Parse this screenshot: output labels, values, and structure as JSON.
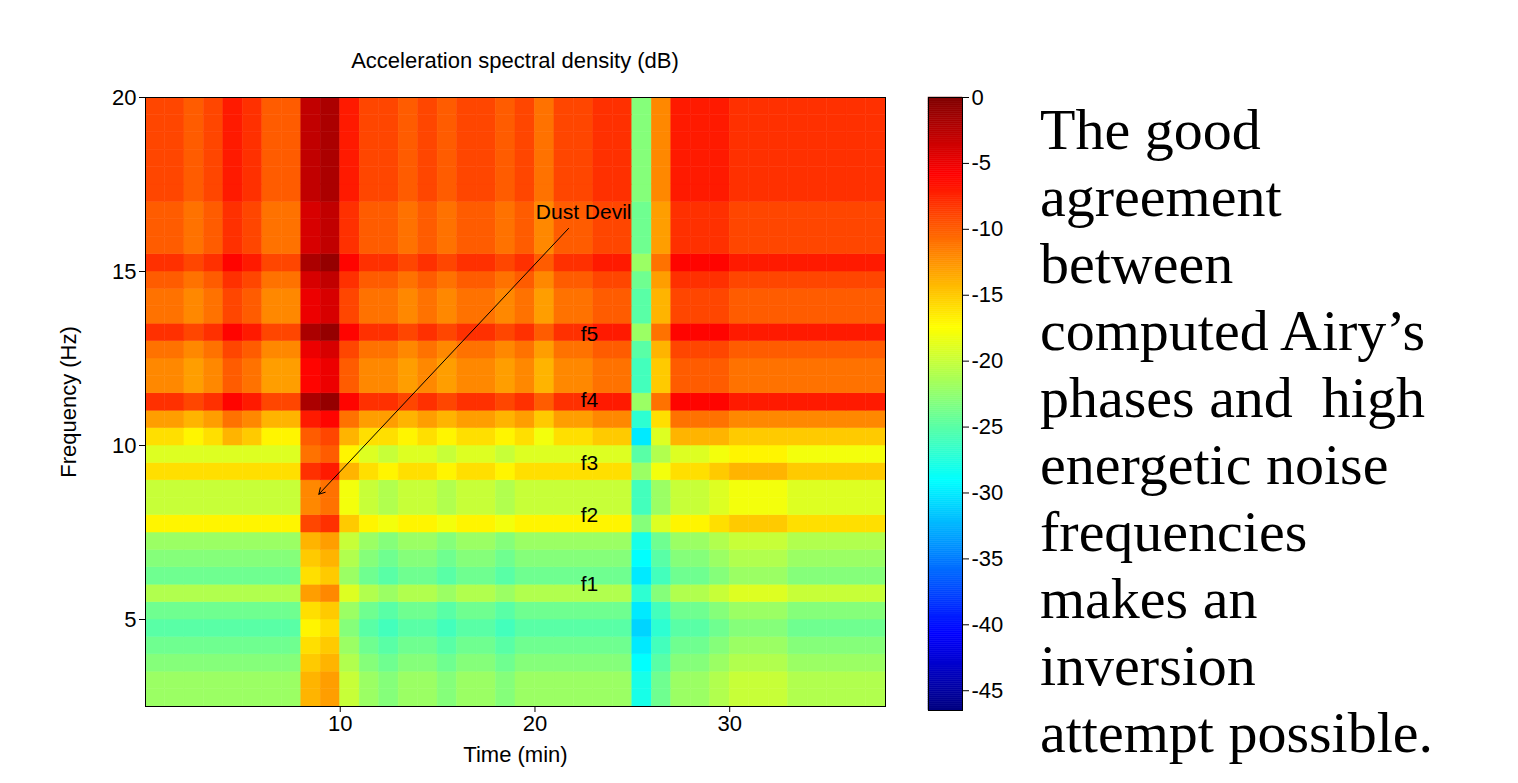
{
  "chart_data": {
    "type": "heatmap",
    "title": "Acceleration spectral density (dB)",
    "x_label": "Time (min)",
    "y_label": "Frequency (Hz)",
    "xlim": [
      0,
      38
    ],
    "ylim": [
      2.5,
      20
    ],
    "xticks": [
      10,
      20,
      30
    ],
    "yticks": [
      5,
      10,
      15,
      20
    ],
    "x_edges": [
      0,
      1,
      2,
      3,
      4,
      5,
      6,
      7,
      8,
      9,
      10,
      11,
      12,
      13,
      14,
      15,
      16,
      17,
      18,
      19,
      20,
      21,
      22,
      23,
      24,
      25,
      26,
      27,
      28,
      29,
      30,
      31,
      32,
      33,
      34,
      35,
      36,
      37,
      38
    ],
    "y_edges": [
      2.5,
      3,
      3.5,
      4,
      4.5,
      5,
      5.5,
      6,
      6.5,
      7,
      7.5,
      8,
      8.5,
      9,
      9.5,
      10,
      10.5,
      11,
      11.5,
      12,
      12.5,
      13,
      13.5,
      14,
      14.5,
      15,
      15.5,
      16,
      16.5,
      17,
      17.5,
      18,
      18.5,
      19,
      19.5,
      20
    ],
    "cells": [
      [
        -22,
        -22,
        -22,
        -22,
        -22,
        -22,
        -22,
        -22,
        -14,
        -13,
        -20,
        -22,
        -23,
        -22,
        -22,
        -23,
        -22,
        -22,
        -23,
        -22,
        -22,
        -22,
        -22,
        -22,
        -22,
        -28,
        -24,
        -22,
        -22,
        -21,
        -20,
        -20,
        -20,
        -21,
        -21,
        -21,
        -21,
        -21
      ],
      [
        -22,
        -22,
        -22,
        -22,
        -22,
        -22,
        -22,
        -22,
        -14,
        -13,
        -20,
        -22,
        -23,
        -22,
        -22,
        -23,
        -22,
        -22,
        -23,
        -22,
        -22,
        -22,
        -22,
        -22,
        -22,
        -28,
        -24,
        -22,
        -22,
        -21,
        -20,
        -20,
        -20,
        -21,
        -21,
        -21,
        -21,
        -21
      ],
      [
        -23,
        -23,
        -23,
        -23,
        -23,
        -23,
        -23,
        -23,
        -15,
        -14,
        -21,
        -23,
        -24,
        -23,
        -23,
        -24,
        -23,
        -23,
        -24,
        -23,
        -23,
        -23,
        -23,
        -23,
        -23,
        -29,
        -25,
        -23,
        -23,
        -22,
        -21,
        -21,
        -21,
        -22,
        -22,
        -22,
        -22,
        -22
      ],
      [
        -24,
        -24,
        -24,
        -24,
        -24,
        -24,
        -24,
        -24,
        -16,
        -15,
        -22,
        -24,
        -25,
        -24,
        -24,
        -25,
        -24,
        -24,
        -25,
        -24,
        -24,
        -24,
        -24,
        -24,
        -24,
        -30,
        -26,
        -24,
        -24,
        -23,
        -22,
        -22,
        -22,
        -23,
        -23,
        -23,
        -23,
        -23
      ],
      [
        -25,
        -25,
        -25,
        -25,
        -25,
        -25,
        -25,
        -25,
        -17,
        -16,
        -23,
        -25,
        -26,
        -25,
        -25,
        -26,
        -25,
        -25,
        -26,
        -25,
        -25,
        -25,
        -25,
        -25,
        -25,
        -31,
        -27,
        -25,
        -25,
        -24,
        -23,
        -23,
        -23,
        -24,
        -24,
        -24,
        -24,
        -24
      ],
      [
        -24,
        -24,
        -24,
        -24,
        -24,
        -24,
        -24,
        -24,
        -16,
        -15,
        -22,
        -24,
        -25,
        -24,
        -24,
        -25,
        -24,
        -24,
        -25,
        -24,
        -24,
        -24,
        -24,
        -24,
        -24,
        -30,
        -26,
        -24,
        -24,
        -23,
        -22,
        -22,
        -22,
        -23,
        -23,
        -23,
        -23,
        -23
      ],
      [
        -21,
        -21,
        -21,
        -21,
        -21,
        -21,
        -21,
        -21,
        -13,
        -12,
        -19,
        -21,
        -22,
        -21,
        -21,
        -22,
        -21,
        -21,
        -22,
        -21,
        -21,
        -21,
        -21,
        -21,
        -21,
        -27,
        -23,
        -21,
        -21,
        -20,
        -19,
        -19,
        -19,
        -20,
        -20,
        -20,
        -20,
        -20
      ],
      [
        -24,
        -24,
        -24,
        -24,
        -24,
        -24,
        -24,
        -24,
        -16,
        -15,
        -22,
        -24,
        -25,
        -24,
        -24,
        -25,
        -24,
        -24,
        -25,
        -24,
        -24,
        -24,
        -24,
        -24,
        -24,
        -30,
        -26,
        -24,
        -24,
        -23,
        -22,
        -22,
        -22,
        -23,
        -23,
        -23,
        -23,
        -23
      ],
      [
        -23,
        -23,
        -23,
        -23,
        -23,
        -23,
        -23,
        -23,
        -15,
        -14,
        -21,
        -23,
        -24,
        -23,
        -23,
        -24,
        -23,
        -23,
        -24,
        -23,
        -23,
        -23,
        -23,
        -23,
        -23,
        -29,
        -25,
        -23,
        -23,
        -22,
        -21,
        -21,
        -21,
        -22,
        -22,
        -22,
        -22,
        -22
      ],
      [
        -22,
        -22,
        -22,
        -22,
        -22,
        -22,
        -22,
        -22,
        -14,
        -13,
        -20,
        -22,
        -23,
        -22,
        -22,
        -23,
        -22,
        -22,
        -23,
        -22,
        -22,
        -22,
        -22,
        -22,
        -22,
        -28,
        -24,
        -22,
        -22,
        -21,
        -20,
        -20,
        -20,
        -21,
        -21,
        -21,
        -21,
        -21
      ],
      [
        -17,
        -17,
        -17,
        -17,
        -17,
        -17,
        -17,
        -17,
        -9,
        -8,
        -15,
        -17,
        -18,
        -17,
        -17,
        -18,
        -17,
        -17,
        -18,
        -17,
        -17,
        -17,
        -17,
        -17,
        -17,
        -23,
        -19,
        -17,
        -17,
        -16,
        -15,
        -15,
        -15,
        -16,
        -16,
        -16,
        -16,
        -16
      ],
      [
        -20,
        -20,
        -20,
        -20,
        -20,
        -20,
        -20,
        -20,
        -12,
        -11,
        -18,
        -20,
        -21,
        -20,
        -20,
        -21,
        -20,
        -20,
        -21,
        -20,
        -20,
        -20,
        -20,
        -20,
        -20,
        -26,
        -22,
        -20,
        -20,
        -19,
        -18,
        -18,
        -18,
        -19,
        -19,
        -19,
        -19,
        -19
      ],
      [
        -20,
        -20,
        -20,
        -20,
        -20,
        -20,
        -20,
        -20,
        -12,
        -11,
        -18,
        -20,
        -21,
        -20,
        -20,
        -21,
        -20,
        -20,
        -21,
        -20,
        -20,
        -20,
        -20,
        -20,
        -20,
        -26,
        -22,
        -20,
        -20,
        -19,
        -18,
        -18,
        -18,
        -19,
        -19,
        -19,
        -19,
        -19
      ],
      [
        -16,
        -16,
        -16,
        -16,
        -16,
        -16,
        -16,
        -16,
        -8,
        -7,
        -14,
        -16,
        -17,
        -16,
        -16,
        -17,
        -16,
        -16,
        -17,
        -16,
        -16,
        -16,
        -16,
        -16,
        -16,
        -22,
        -18,
        -16,
        -16,
        -15,
        -14,
        -14,
        -14,
        -15,
        -15,
        -15,
        -15,
        -15
      ],
      [
        -19,
        -19,
        -19,
        -19,
        -19,
        -19,
        -19,
        -19,
        -11,
        -10,
        -17,
        -19,
        -20,
        -19,
        -19,
        -20,
        -19,
        -19,
        -20,
        -19,
        -19,
        -19,
        -19,
        -19,
        -19,
        -25,
        -21,
        -19,
        -19,
        -18,
        -17,
        -17,
        -17,
        -18,
        -18,
        -18,
        -18,
        -18
      ],
      [
        -16,
        -16,
        -17,
        -16,
        -14,
        -15,
        -17,
        -17,
        -10,
        -9,
        -14,
        -16,
        -16,
        -17,
        -16,
        -17,
        -16,
        -16,
        -17,
        -16,
        -18,
        -16,
        -16,
        -15,
        -15,
        -30,
        -19,
        -14,
        -14,
        -14,
        -15,
        -15,
        -15,
        -15,
        -15,
        -15,
        -15,
        -15
      ],
      [
        -13,
        -13,
        -14,
        -13,
        -11,
        -12,
        -14,
        -14,
        -7,
        -6,
        -11,
        -13,
        -13,
        -14,
        -13,
        -14,
        -13,
        -13,
        -14,
        -13,
        -15,
        -13,
        -13,
        -12,
        -12,
        -27,
        -16,
        -11,
        -11,
        -11,
        -12,
        -12,
        -12,
        -12,
        -12,
        -12,
        -12,
        -12
      ],
      [
        -8,
        -8,
        -9,
        -8,
        -6,
        -7,
        -9,
        -9,
        -2,
        -1,
        -6,
        -8,
        -8,
        -9,
        -8,
        -9,
        -8,
        -8,
        -9,
        -8,
        -10,
        -8,
        -8,
        -7,
        -7,
        -22,
        -11,
        -6,
        -6,
        -6,
        -7,
        -7,
        -7,
        -7,
        -7,
        -7,
        -7,
        -7
      ],
      [
        -12,
        -12,
        -13,
        -12,
        -10,
        -11,
        -13,
        -13,
        -6,
        -5,
        -10,
        -12,
        -12,
        -13,
        -12,
        -13,
        -12,
        -12,
        -13,
        -12,
        -14,
        -12,
        -12,
        -11,
        -11,
        -26,
        -15,
        -10,
        -10,
        -10,
        -11,
        -11,
        -11,
        -11,
        -11,
        -11,
        -11,
        -11
      ],
      [
        -12,
        -12,
        -13,
        -12,
        -10,
        -11,
        -13,
        -13,
        -6,
        -5,
        -10,
        -12,
        -12,
        -13,
        -12,
        -13,
        -12,
        -12,
        -13,
        -12,
        -14,
        -12,
        -12,
        -11,
        -11,
        -26,
        -15,
        -10,
        -10,
        -10,
        -11,
        -11,
        -11,
        -11,
        -11,
        -11,
        -11,
        -11
      ],
      [
        -11,
        -11,
        -12,
        -11,
        -9,
        -10,
        -12,
        -12,
        -5,
        -4,
        -9,
        -11,
        -11,
        -12,
        -11,
        -12,
        -11,
        -11,
        -12,
        -11,
        -13,
        -11,
        -11,
        -10,
        -10,
        -25,
        -14,
        -9,
        -9,
        -9,
        -10,
        -10,
        -10,
        -10,
        -10,
        -10,
        -10,
        -10
      ],
      [
        -8,
        -8,
        -9,
        -8,
        -6,
        -7,
        -9,
        -9,
        -2,
        -1,
        -6,
        -8,
        -8,
        -9,
        -8,
        -9,
        -8,
        -8,
        -9,
        -8,
        -10,
        -8,
        -8,
        -7,
        -7,
        -22,
        -11,
        -6,
        -6,
        -6,
        -7,
        -7,
        -7,
        -7,
        -7,
        -7,
        -7,
        -7
      ],
      [
        -11,
        -11,
        -12,
        -11,
        -9,
        -10,
        -12,
        -12,
        -5,
        -4,
        -9,
        -11,
        -11,
        -12,
        -11,
        -12,
        -11,
        -11,
        -12,
        -11,
        -13,
        -11,
        -11,
        -10,
        -10,
        -25,
        -14,
        -9,
        -9,
        -9,
        -10,
        -10,
        -10,
        -10,
        -10,
        -10,
        -10,
        -10
      ],
      [
        -11,
        -11,
        -12,
        -11,
        -9,
        -10,
        -12,
        -12,
        -5,
        -4,
        -9,
        -11,
        -11,
        -12,
        -11,
        -12,
        -11,
        -11,
        -12,
        -11,
        -13,
        -11,
        -11,
        -10,
        -10,
        -25,
        -14,
        -9,
        -9,
        -9,
        -10,
        -10,
        -10,
        -10,
        -10,
        -10,
        -10,
        -10
      ],
      [
        -10,
        -10,
        -11,
        -10,
        -8,
        -9,
        -11,
        -11,
        -4,
        -3,
        -8,
        -10,
        -10,
        -11,
        -10,
        -11,
        -10,
        -10,
        -11,
        -10,
        -12,
        -10,
        -10,
        -9,
        -9,
        -24,
        -13,
        -8,
        -8,
        -8,
        -9,
        -9,
        -9,
        -9,
        -9,
        -9,
        -9,
        -9
      ],
      [
        -8,
        -8,
        -9,
        -8,
        -6,
        -7,
        -9,
        -9,
        -2,
        -1,
        -6,
        -8,
        -8,
        -9,
        -8,
        -9,
        -8,
        -8,
        -9,
        -8,
        -10,
        -8,
        -8,
        -7,
        -7,
        -22,
        -11,
        -6,
        -6,
        -6,
        -7,
        -7,
        -7,
        -7,
        -7,
        -7,
        -7,
        -7
      ],
      [
        -10,
        -10,
        -11,
        -10,
        -8,
        -9,
        -11,
        -11,
        -4,
        -3,
        -8,
        -10,
        -10,
        -11,
        -10,
        -11,
        -10,
        -10,
        -11,
        -10,
        -12,
        -10,
        -10,
        -9,
        -9,
        -24,
        -13,
        -8,
        -8,
        -8,
        -9,
        -9,
        -9,
        -9,
        -9,
        -9,
        -9,
        -9
      ],
      [
        -10,
        -10,
        -11,
        -10,
        -8,
        -9,
        -11,
        -11,
        -4,
        -3,
        -8,
        -10,
        -10,
        -11,
        -10,
        -11,
        -10,
        -10,
        -11,
        -10,
        -12,
        -10,
        -10,
        -9,
        -9,
        -24,
        -13,
        -8,
        -8,
        -8,
        -9,
        -9,
        -9,
        -9,
        -9,
        -9,
        -9,
        -9
      ],
      [
        -10,
        -10,
        -11,
        -10,
        -8,
        -9,
        -11,
        -11,
        -4,
        -3,
        -8,
        -10,
        -10,
        -11,
        -10,
        -11,
        -10,
        -10,
        -11,
        -10,
        -12,
        -10,
        -10,
        -9,
        -9,
        -24,
        -13,
        -8,
        -8,
        -8,
        -9,
        -9,
        -9,
        -9,
        -9,
        -9,
        -9,
        -9
      ],
      [
        -9,
        -9,
        -10,
        -9,
        -7,
        -8,
        -10,
        -10,
        -3,
        -2,
        -7,
        -9,
        -9,
        -10,
        -9,
        -10,
        -9,
        -9,
        -10,
        -9,
        -11,
        -9,
        -9,
        -8,
        -8,
        -23,
        -12,
        -7,
        -7,
        -7,
        -8,
        -8,
        -8,
        -8,
        -8,
        -8,
        -8,
        -8
      ],
      [
        -9,
        -9,
        -10,
        -9,
        -7,
        -8,
        -10,
        -10,
        -3,
        -2,
        -7,
        -9,
        -9,
        -10,
        -9,
        -10,
        -9,
        -9,
        -10,
        -9,
        -11,
        -9,
        -9,
        -8,
        -8,
        -23,
        -12,
        -7,
        -7,
        -7,
        -8,
        -8,
        -8,
        -8,
        -8,
        -8,
        -8,
        -8
      ],
      [
        -9,
        -9,
        -10,
        -9,
        -7,
        -8,
        -10,
        -10,
        -3,
        -2,
        -7,
        -9,
        -9,
        -10,
        -9,
        -10,
        -9,
        -9,
        -10,
        -9,
        -11,
        -9,
        -9,
        -8,
        -8,
        -23,
        -12,
        -7,
        -7,
        -7,
        -8,
        -8,
        -8,
        -8,
        -8,
        -8,
        -8,
        -8
      ],
      [
        -9,
        -9,
        -10,
        -9,
        -7,
        -8,
        -10,
        -10,
        -3,
        -2,
        -7,
        -9,
        -9,
        -10,
        -9,
        -10,
        -9,
        -9,
        -10,
        -9,
        -11,
        -9,
        -9,
        -8,
        -8,
        -23,
        -12,
        -7,
        -7,
        -7,
        -8,
        -8,
        -8,
        -8,
        -8,
        -8,
        -8,
        -8
      ],
      [
        -9,
        -9,
        -10,
        -9,
        -7,
        -8,
        -10,
        -10,
        -3,
        -2,
        -7,
        -9,
        -9,
        -10,
        -9,
        -10,
        -9,
        -9,
        -10,
        -9,
        -11,
        -9,
        -9,
        -8,
        -8,
        -23,
        -12,
        -7,
        -7,
        -7,
        -8,
        -8,
        -8,
        -8,
        -8,
        -8,
        -8,
        -8
      ],
      [
        -9,
        -9,
        -10,
        -9,
        -7,
        -8,
        -10,
        -10,
        -3,
        -2,
        -7,
        -9,
        -9,
        -10,
        -9,
        -10,
        -9,
        -9,
        -10,
        -9,
        -11,
        -9,
        -9,
        -8,
        -8,
        -23,
        -12,
        -7,
        -7,
        -7,
        -8,
        -8,
        -8,
        -8,
        -8,
        -8,
        -8,
        -8
      ]
    ],
    "colorbar_lim": [
      -46.5,
      0
    ],
    "colorbar_ticks": [
      0,
      -5,
      -10,
      -15,
      -20,
      -25,
      -30,
      -35,
      -40,
      -45
    ],
    "annotations": [
      {
        "text": "Dust Devil",
        "x": 22.5,
        "y": 16.7,
        "arrow_x": 8.9,
        "arrow_y": 8.6
      },
      {
        "text": "f5",
        "x": 22.8,
        "y": 13.2
      },
      {
        "text": "f4",
        "x": 22.8,
        "y": 11.3
      },
      {
        "text": "f3",
        "x": 22.8,
        "y": 9.5
      },
      {
        "text": "f2",
        "x": 22.8,
        "y": 8.0
      },
      {
        "text": "f1",
        "x": 22.8,
        "y": 6.0
      }
    ],
    "side_text": [
      "The good",
      "agreement",
      "between",
      "computed Airy’s",
      "phases and  high",
      "energetic noise",
      "frequencies",
      "makes an",
      "inversion",
      "attempt possible."
    ]
  }
}
